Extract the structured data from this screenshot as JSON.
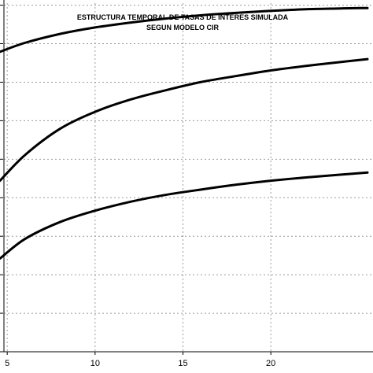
{
  "chart_data": {
    "type": "line",
    "title": "ESTRUCTURA TEMPORAL DE TASAS DE INTERES SIMULADA",
    "subtitle": "SEGUN MODELO CIR",
    "xlabel": "",
    "ylabel": "",
    "xlim": [
      4.5,
      25.5
    ],
    "ylim": [
      0,
      8.6
    ],
    "grid": true,
    "x_ticks": [
      5,
      10,
      15,
      20
    ],
    "x_tick_labels": [
      "5",
      "10",
      "15",
      "20"
    ],
    "y_grid_values": [
      0.95,
      1.9,
      2.85,
      3.8,
      4.75,
      5.7,
      6.65,
      7.6,
      8.55
    ],
    "series": [
      {
        "x": [
          4.5,
          6,
          8,
          10,
          12,
          14,
          16,
          18,
          20,
          22,
          24,
          25.5
        ],
        "values": [
          7.4,
          7.62,
          7.84,
          8.0,
          8.12,
          8.22,
          8.3,
          8.36,
          8.41,
          8.45,
          8.47,
          8.48
        ]
      },
      {
        "x": [
          4.5,
          6,
          8,
          10,
          12,
          14,
          16,
          18,
          20,
          22,
          24,
          25.5
        ],
        "values": [
          4.22,
          4.85,
          5.5,
          5.92,
          6.22,
          6.45,
          6.65,
          6.8,
          6.94,
          7.05,
          7.15,
          7.22
        ]
      },
      {
        "x": [
          4.5,
          6,
          8,
          10,
          12,
          14,
          16,
          18,
          20,
          22,
          24,
          25.5
        ],
        "values": [
          2.3,
          2.78,
          3.2,
          3.48,
          3.7,
          3.87,
          4.0,
          4.12,
          4.22,
          4.3,
          4.37,
          4.42
        ]
      }
    ]
  }
}
